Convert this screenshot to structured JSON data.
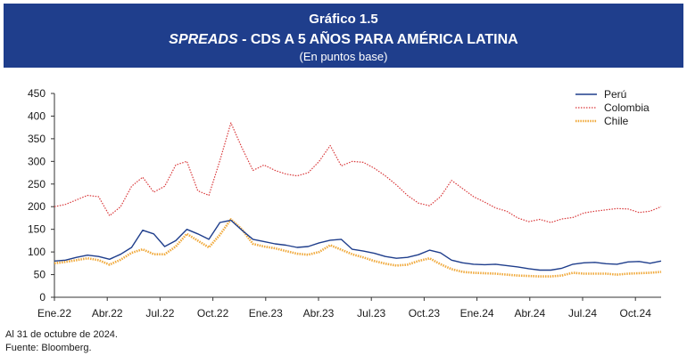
{
  "header": {
    "number": "Gráfico 1.5",
    "title_italic": "SPREADS",
    "title_rest": " - CDS A 5 AÑOS PARA AMÉRICA LATINA",
    "subtitle": "(En puntos base)"
  },
  "notes": {
    "date": "Al 31 de octubre de 2024.",
    "source": "Fuente: Bloomberg."
  },
  "colors": {
    "header_bg": "#1f3e8c",
    "peru": "#1f3e8c",
    "colombia": "#d9383a",
    "chile": "#f0a93b"
  },
  "chart_data": {
    "type": "line",
    "x_ticks": [
      "Ene.22",
      "Abr.22",
      "Jul.22",
      "Oct.22",
      "Ene.23",
      "Abr.23",
      "Jul.23",
      "Oct.23",
      "Ene.24",
      "Abr.24",
      "Jul.24",
      "Oct.24"
    ],
    "y_ticks": [
      0,
      50,
      100,
      150,
      200,
      250,
      300,
      350,
      400,
      450
    ],
    "ylim": [
      0,
      450
    ],
    "legend_position": "top-right",
    "series": [
      {
        "name": "Perú",
        "color": "#1f3e8c",
        "style": "solid",
        "values": [
          80,
          82,
          88,
          93,
          90,
          84,
          95,
          110,
          148,
          140,
          112,
          125,
          150,
          140,
          128,
          165,
          170,
          148,
          128,
          123,
          118,
          115,
          110,
          112,
          120,
          126,
          128,
          106,
          102,
          97,
          90,
          86,
          88,
          94,
          104,
          98,
          82,
          76,
          73,
          72,
          73,
          70,
          67,
          63,
          60,
          60,
          64,
          73,
          76,
          77,
          74,
          73,
          78,
          79,
          75,
          80
        ]
      },
      {
        "name": "Colombia",
        "color": "#d9383a",
        "style": "dotted",
        "values": [
          200,
          205,
          215,
          225,
          222,
          180,
          200,
          245,
          265,
          232,
          245,
          292,
          300,
          235,
          225,
          302,
          385,
          330,
          280,
          292,
          280,
          272,
          268,
          275,
          300,
          335,
          290,
          300,
          298,
          285,
          268,
          248,
          225,
          208,
          202,
          222,
          258,
          240,
          222,
          210,
          197,
          190,
          175,
          167,
          172,
          165,
          173,
          176,
          186,
          190,
          193,
          196,
          195,
          187,
          190,
          200
        ]
      },
      {
        "name": "Chile",
        "color": "#f0a93b",
        "style": "thick-dotted",
        "values": [
          75,
          78,
          82,
          86,
          82,
          72,
          83,
          98,
          106,
          95,
          95,
          112,
          140,
          125,
          110,
          138,
          172,
          150,
          118,
          112,
          108,
          102,
          96,
          94,
          100,
          115,
          105,
          95,
          88,
          80,
          74,
          70,
          72,
          80,
          86,
          73,
          62,
          56,
          54,
          53,
          52,
          50,
          48,
          47,
          46,
          46,
          48,
          54,
          52,
          52,
          52,
          50,
          52,
          53,
          54,
          56
        ]
      }
    ]
  }
}
